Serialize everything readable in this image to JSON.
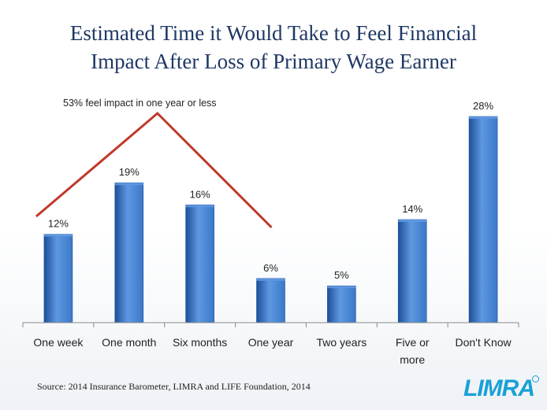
{
  "title_line1": "Estimated Time it Would Take to Feel Financial",
  "title_line2": "Impact After Loss of Primary Wage Earner",
  "annotation": "53% feel impact in one year or less",
  "source": "Source: 2014 Insurance Barometer, LIMRA and LIFE Foundation, 2014",
  "logo_text": "LIMRA",
  "colors": {
    "bar": "#3a78c8",
    "bar_dark": "#1d4f99",
    "bar_light": "#5e98e0",
    "annotation_line": "#c0392b",
    "title": "#1f3864",
    "logo": "#1aa0d8"
  },
  "chart_data": {
    "type": "bar",
    "categories": [
      "One week",
      "One month",
      "Six months",
      "One year",
      "Two years",
      "Five or more",
      "Don't Know"
    ],
    "category_lines": [
      [
        "One week"
      ],
      [
        "One month"
      ],
      [
        "Six months"
      ],
      [
        "One year"
      ],
      [
        "Two years"
      ],
      [
        "Five or",
        "more"
      ],
      [
        "Don't Know"
      ]
    ],
    "values": [
      12,
      19,
      16,
      6,
      5,
      14,
      28
    ],
    "value_labels": [
      "12%",
      "19%",
      "16%",
      "6%",
      "5%",
      "14%",
      "28%"
    ],
    "unit": "%",
    "ylim": [
      0,
      28
    ],
    "grid": false,
    "legend": "none"
  }
}
